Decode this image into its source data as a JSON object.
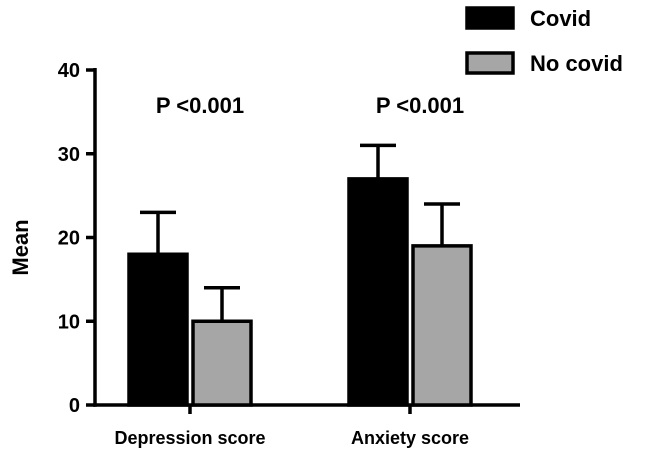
{
  "chart_data": {
    "type": "bar",
    "title": "",
    "xlabel": "",
    "ylabel": "Mean",
    "ylim": [
      0,
      40
    ],
    "yticks": [
      0,
      10,
      20,
      30,
      40
    ],
    "grid": false,
    "legend_position": "top-right",
    "categories": [
      "Depression score",
      "Anxiety score"
    ],
    "series": [
      {
        "name": "Covid",
        "color": "#000000",
        "values": [
          18,
          27
        ],
        "error_upper": [
          23,
          31
        ]
      },
      {
        "name": "No covid",
        "color": "#a6a6a6",
        "values": [
          10,
          19
        ],
        "error_upper": [
          14,
          24
        ]
      }
    ],
    "annotations": [
      "P <0.001",
      "P <0.001"
    ]
  }
}
